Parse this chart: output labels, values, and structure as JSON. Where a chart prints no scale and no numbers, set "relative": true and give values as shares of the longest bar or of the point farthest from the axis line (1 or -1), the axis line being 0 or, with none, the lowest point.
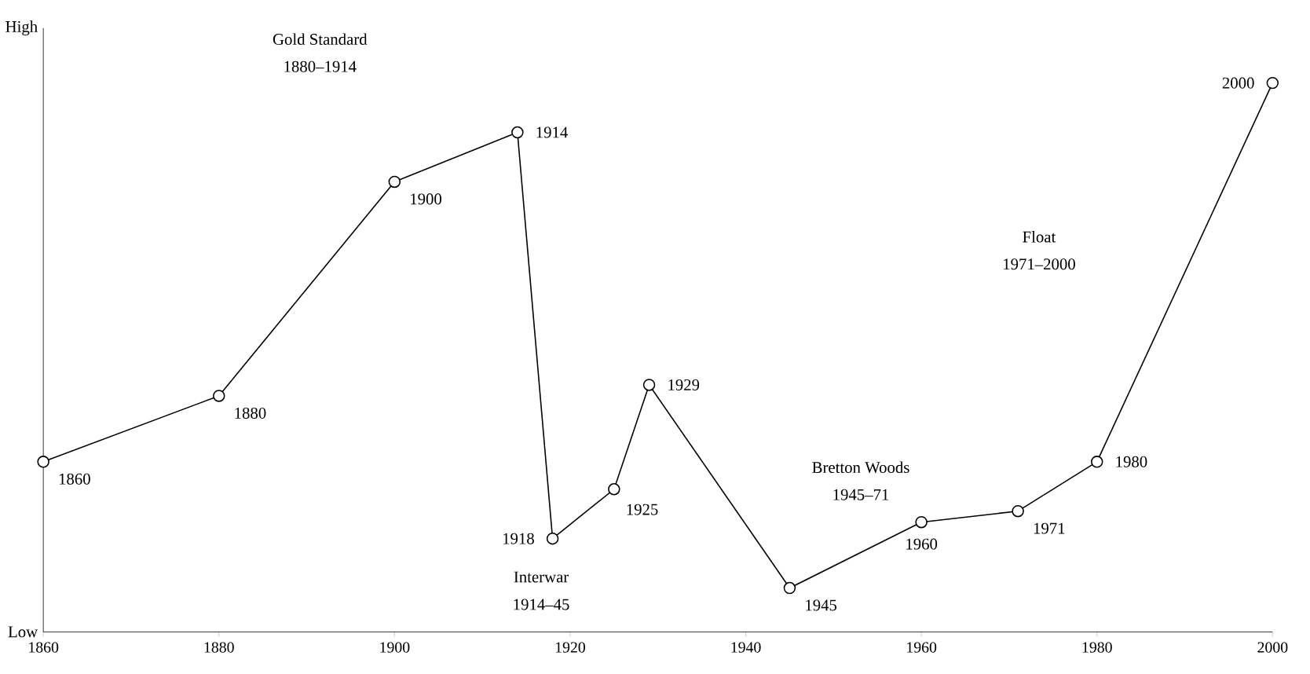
{
  "chart_data": {
    "type": "line",
    "relative": true,
    "x": [
      1860,
      1880,
      1900,
      1914,
      1918,
      1925,
      1929,
      1945,
      1960,
      1971,
      1980,
      2000
    ],
    "values": [
      0.31,
      0.43,
      0.82,
      0.91,
      0.17,
      0.26,
      0.45,
      0.08,
      0.2,
      0.22,
      0.31,
      1
    ],
    "color": "#000000",
    "marker": "circle",
    "line_style": "solid",
    "xlim": [
      1860,
      2000
    ],
    "xticks": [
      1860,
      1880,
      1900,
      1920,
      1940,
      1960,
      1980,
      2000
    ],
    "annotations": [
      "High",
      "Low",
      "Gold Standard",
      "1880–1914",
      "Interwar",
      "1914–45",
      "Bretton Woods",
      "1945–71",
      "Float",
      "1971–2000",
      {
        "text": "1860",
        "x": 1860,
        "y": 0.31
      },
      {
        "text": "1880",
        "x": 1880,
        "y": 0.43
      },
      {
        "text": "1900",
        "x": 1900,
        "y": 0.82
      },
      {
        "text": "1914",
        "x": 1914,
        "y": 0.91
      },
      {
        "text": "1918",
        "x": 1918,
        "y": 0.17
      },
      {
        "text": "1925",
        "x": 1925,
        "y": 0.26
      },
      {
        "text": "1929",
        "x": 1929,
        "y": 0.45
      },
      {
        "text": "1945",
        "x": 1945,
        "y": 0.08
      },
      {
        "text": "1960",
        "x": 1960,
        "y": 0.2
      },
      {
        "text": "1971",
        "x": 1971,
        "y": 0.22
      },
      {
        "text": "1980",
        "x": 1980,
        "y": 0.31
      },
      {
        "text": "2000",
        "x": 2000,
        "y": 1
      }
    ]
  }
}
